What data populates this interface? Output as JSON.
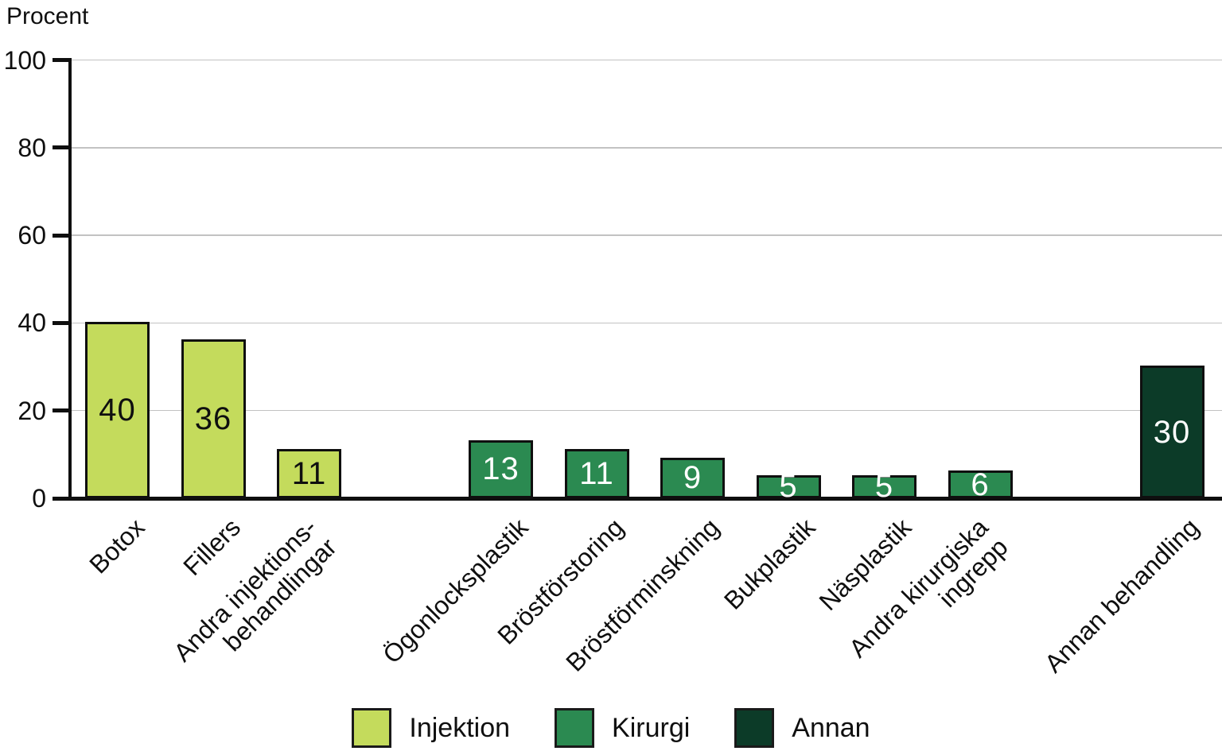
{
  "chart_data": {
    "type": "bar",
    "title": "",
    "ylabel": "Procent",
    "xlabel": "",
    "ylim": [
      0,
      100
    ],
    "yticks": [
      0,
      20,
      40,
      60,
      80,
      100
    ],
    "grid": true,
    "legend_position": "bottom",
    "categories": [
      "Botox",
      "Fillers",
      "Andra injektions-behandlingar",
      "Ögonlocksplastik",
      "Bröstförstoring",
      "Bröstförminskning",
      "Bukplastik",
      "Näsplastik",
      "Andra kirurgiska ingrepp",
      "Annan behandling"
    ],
    "values": [
      40,
      36,
      11,
      13,
      11,
      9,
      5,
      5,
      6,
      30
    ],
    "groups": [
      {
        "name": "Injektion",
        "color": "#c4db5c",
        "value_label_color": "#0f0f0f",
        "bars": [
          {
            "label": "Botox",
            "value": 40
          },
          {
            "label": "Fillers",
            "value": 36
          },
          {
            "label": "Andra injektions-\nbehandlingar",
            "value": 11
          }
        ]
      },
      {
        "name": "Kirurgi",
        "color": "#2b8a51",
        "value_label_color": "#ffffff",
        "bars": [
          {
            "label": "Ögonlocksplastik",
            "value": 13
          },
          {
            "label": "Bröstförstoring",
            "value": 11
          },
          {
            "label": "Bröstförminskning",
            "value": 9
          },
          {
            "label": "Bukplastik",
            "value": 5
          },
          {
            "label": "Näsplastik",
            "value": 5
          },
          {
            "label": "Andra kirurgiska\ningrepp",
            "value": 6
          }
        ]
      },
      {
        "name": "Annan",
        "color": "#0c3b28",
        "value_label_color": "#ffffff",
        "bars": [
          {
            "label": "Annan behandling",
            "value": 30
          }
        ]
      }
    ],
    "legend": [
      {
        "label": "Injektion",
        "color": "#c4db5c"
      },
      {
        "label": "Kirurgi",
        "color": "#2b8a51"
      },
      {
        "label": "Annan",
        "color": "#0c3b28"
      }
    ],
    "colors": {
      "injektion": "#c4db5c",
      "kirurgi": "#2b8a51",
      "annan": "#0c3b28",
      "gridline": "#c2c2c2",
      "axis": "#0f0f0f"
    }
  }
}
